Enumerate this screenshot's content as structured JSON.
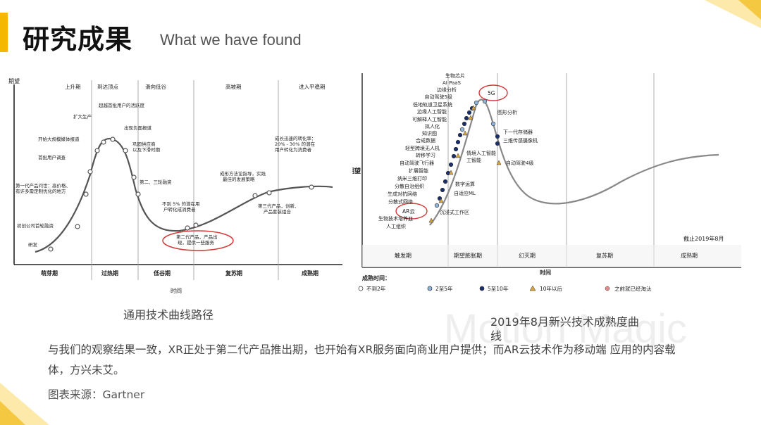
{
  "header": {
    "title_zh": "研究成果",
    "title_en": "What we have found"
  },
  "watermark": "Motion Magic",
  "chart1": {
    "caption": "通用技术曲线路径",
    "ylabel": "期望",
    "xlabel": "时间",
    "top_phases": [
      "上升期",
      "到达顶点",
      "滑向低谷",
      "高坡期",
      "进入平稳期"
    ],
    "bottom_phases": [
      "萌芽期",
      "过热期",
      "低谷期",
      "复苏期",
      "成熟期"
    ],
    "annotations": [
      "研发",
      "初创公司首轮融资",
      "第一代产品问世：高价格、",
      "有许多需定制优化的地方",
      "首批用户调查",
      "开始大规模媒体报道",
      "扩大生产",
      "超越首批用户的活跃度",
      "出现负面报道",
      "巩固供应商",
      "以及下滑时期",
      "第二、三轮融资",
      "不到 5% 的潜在用",
      "户转化成消费者",
      "第二代产品，产品出",
      "现，提供一些服务",
      "成形方法论指导，实践",
      "最佳的发展策略",
      "第三代产品，创新、",
      "产品套装组合",
      "成长迅速的转化率：",
      "20% - 30% 的潜在",
      "用户转化为消费者"
    ]
  },
  "chart2": {
    "caption_line1": "2019年8月新兴技术成熟度曲",
    "caption_line2": "线",
    "ylabel": "期望",
    "xlabel": "时间",
    "date_note": "截止2019年8月",
    "bottom_phases": [
      "触发期",
      "期望膨胀期",
      "幻灭期",
      "复苏期",
      "成熟期"
    ],
    "legend_title": "成熟时间：",
    "legend": [
      {
        "label": "不到2年",
        "color": "#ffffff"
      },
      {
        "label": "2至5年",
        "color": "#8fb3d9"
      },
      {
        "label": "5至10年",
        "color": "#1b2f6b"
      },
      {
        "label": "10年以后",
        "color": "#d8a63a"
      },
      {
        "label": "之前就已经淘汰",
        "color": "#e88a8a"
      }
    ],
    "techs_left": [
      "生物芯片",
      "AI PaaS",
      "边缘分析",
      "自动驾驶5级",
      "低地轨道卫星系统",
      "边缘人工智能",
      "可解释人工智能",
      "拟人化",
      "知识图",
      "合成数据",
      "轻型跨境无人机",
      "转移学习",
      "自动驾驶飞行器",
      "扩展智能",
      "纳米三维打印",
      "分散自治组织",
      "生成对抗网络",
      "分散式网络",
      "AR云",
      "生物技术培养皿",
      "人工组织"
    ],
    "techs_right": [
      "5G",
      "图形分析",
      "下一代存储器",
      "三维传感摄像机",
      "自动驾驶4级",
      "情境人工智能",
      "数字运算",
      "自适应ML",
      "沉浸式工作区"
    ],
    "highlight_5g": "5G",
    "highlight_ar": "AR云"
  },
  "body": {
    "text": "与我们的观察结果一致，XR正处于第二代产品推出期，也开始有XR服务面向商业用户提供；而AR云技术作为移动端 应用的内容载体，方兴未艾。",
    "source": "图表来源：Gartner"
  }
}
